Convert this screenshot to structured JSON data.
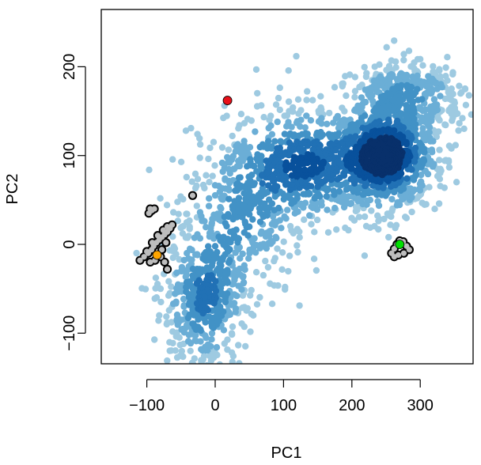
{
  "chart_data": {
    "type": "scatter",
    "title": "",
    "xlabel": "PC1",
    "ylabel": "PC2",
    "xlim": [
      -170,
      385
    ],
    "ylim": [
      -135,
      265
    ],
    "x_ticks": [
      -100,
      0,
      100,
      200,
      300
    ],
    "y_ticks": [
      -100,
      0,
      100,
      200
    ],
    "x_tick_labels": [
      "−100",
      "0",
      "100",
      "200",
      "300"
    ],
    "y_tick_labels": [
      "−100",
      "0",
      "100",
      "200"
    ],
    "grid": false,
    "legend": "none",
    "density_colors": [
      "#9ecae1",
      "#6baed6",
      "#4292c6",
      "#2171b5",
      "#08519c",
      "#08306b"
    ],
    "density_clusters": [
      {
        "center": [
          250,
          100
        ],
        "spread": [
          38,
          30
        ],
        "weight": 1.0
      },
      {
        "center": [
          130,
          90
        ],
        "spread": [
          55,
          32
        ],
        "weight": 0.7
      },
      {
        "center": [
          -15,
          -60
        ],
        "spread": [
          30,
          40
        ],
        "weight": 0.55
      },
      {
        "center": [
          40,
          30
        ],
        "spread": [
          45,
          45
        ],
        "weight": 0.35
      },
      {
        "center": [
          280,
          170
        ],
        "spread": [
          45,
          20
        ],
        "weight": 0.35
      }
    ],
    "highlight_points": [
      {
        "name": "red",
        "x": 18,
        "y": 162,
        "color": "#e8101a"
      },
      {
        "name": "orange",
        "x": -85,
        "y": -12,
        "color": "#ffa500"
      },
      {
        "name": "green",
        "x": 270,
        "y": 0,
        "color": "#00e000"
      }
    ],
    "grey_clusters": [
      {
        "center": [
          -80,
          0
        ],
        "points": [
          [
            -110,
            -18
          ],
          [
            -104,
            -14
          ],
          [
            -98,
            -10
          ],
          [
            -93,
            -6
          ],
          [
            -90,
            -2
          ],
          [
            -86,
            2
          ],
          [
            -82,
            5
          ],
          [
            -78,
            8
          ],
          [
            -74,
            11
          ],
          [
            -70,
            14
          ],
          [
            -66,
            18
          ],
          [
            -63,
            22
          ],
          [
            -70,
            20
          ],
          [
            -76,
            16
          ],
          [
            -84,
            10
          ],
          [
            -92,
            2
          ],
          [
            -100,
            -8
          ],
          [
            -95,
            -20
          ],
          [
            -88,
            -18
          ],
          [
            -80,
            -14
          ],
          [
            -74,
            -20
          ],
          [
            -70,
            -28
          ],
          [
            -78,
            -6
          ],
          [
            -72,
            2
          ]
        ]
      },
      {
        "center": [
          -93,
          37
        ],
        "points": [
          [
            -97,
            35
          ],
          [
            -93,
            38
          ],
          [
            -89,
            40
          ],
          [
            -95,
            40
          ]
        ]
      },
      {
        "center": [
          -33,
          55
        ],
        "points": [
          [
            -33,
            55
          ]
        ]
      },
      {
        "center": [
          272,
          0
        ],
        "points": [
          [
            258,
            -10
          ],
          [
            262,
            -5
          ],
          [
            266,
            0
          ],
          [
            270,
            4
          ],
          [
            275,
            3
          ],
          [
            280,
            -2
          ],
          [
            284,
            -6
          ],
          [
            276,
            -10
          ],
          [
            268,
            -12
          ],
          [
            262,
            -14
          ]
        ]
      }
    ]
  }
}
